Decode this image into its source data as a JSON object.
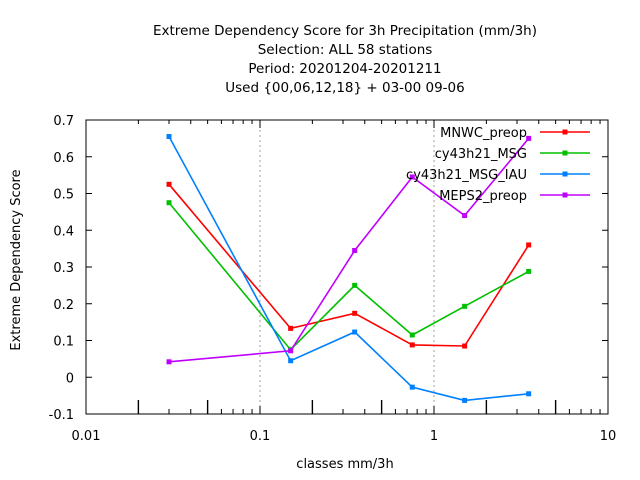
{
  "chart_data": {
    "type": "line",
    "title_lines": [
      "Extreme Dependency Score  for 3h Precipitation (mm/3h)",
      "Selection: ALL      58 stations",
      "Period: 20201204-20201211",
      "Used {00,06,12,18} + 03-00 09-06"
    ],
    "xlabel": "classes mm/3h",
    "ylabel": "Extreme Dependency Score",
    "x_scale": "log",
    "xlim": [
      0.01,
      10
    ],
    "ylim": [
      -0.1,
      0.7
    ],
    "x_ticks": [
      0.01,
      0.1,
      1,
      10
    ],
    "x_tick_labels": [
      "0.01",
      "0.1",
      "1",
      "10"
    ],
    "y_ticks": [
      -0.1,
      0,
      0.1,
      0.2,
      0.3,
      0.4,
      0.5,
      0.6,
      0.7
    ],
    "y_tick_labels": [
      "-0.1",
      "0",
      "0.1",
      "0.2",
      "0.3",
      "0.4",
      "0.5",
      "0.6",
      "0.7"
    ],
    "grid": "dashed at x=0.1 and x=1 only",
    "legend_position": "top-right",
    "x": [
      0.03,
      0.15,
      0.35,
      0.75,
      1.5,
      3.5
    ],
    "series": [
      {
        "name": "MNWC_preop",
        "color": "#ff0000",
        "values": [
          0.525,
          0.133,
          0.174,
          0.088,
          0.085,
          0.36
        ]
      },
      {
        "name": "cy43h21_MSG",
        "color": "#00c000",
        "values": [
          0.475,
          0.075,
          0.25,
          0.115,
          0.193,
          0.288
        ]
      },
      {
        "name": "cy43h21_MSG_IAU",
        "color": "#0080ff",
        "values": [
          0.655,
          0.045,
          0.123,
          -0.027,
          -0.063,
          -0.045
        ]
      },
      {
        "name": "MEPS2_preop",
        "color": "#c000ff",
        "values": [
          0.042,
          0.072,
          0.345,
          0.545,
          0.44,
          0.65
        ]
      }
    ]
  }
}
